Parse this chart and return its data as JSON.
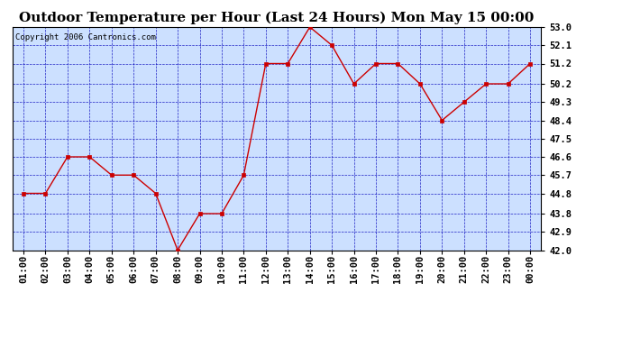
{
  "title": "Outdoor Temperature per Hour (Last 24 Hours) Mon May 15 00:00",
  "copyright": "Copyright 2006 Cantronics.com",
  "x_labels": [
    "01:00",
    "02:00",
    "03:00",
    "04:00",
    "05:00",
    "06:00",
    "07:00",
    "08:00",
    "09:00",
    "10:00",
    "11:00",
    "12:00",
    "13:00",
    "14:00",
    "15:00",
    "16:00",
    "17:00",
    "18:00",
    "19:00",
    "20:00",
    "21:00",
    "22:00",
    "23:00",
    "00:00"
  ],
  "y_values": [
    44.8,
    44.8,
    46.6,
    46.6,
    45.7,
    45.7,
    44.8,
    42.0,
    43.8,
    43.8,
    45.7,
    51.2,
    51.2,
    53.0,
    52.1,
    50.2,
    51.2,
    51.2,
    50.2,
    48.4,
    49.3,
    50.2,
    50.2,
    51.2
  ],
  "y_ticks": [
    42.0,
    42.9,
    43.8,
    44.8,
    45.7,
    46.6,
    47.5,
    48.4,
    49.3,
    50.2,
    51.2,
    52.1,
    53.0
  ],
  "ylim": [
    42.0,
    53.0
  ],
  "line_color": "#cc0000",
  "marker_color": "#cc0000",
  "bg_color": "#cce0ff",
  "outer_bg": "#ffffff",
  "grid_color": "#0000bb",
  "title_fontsize": 11,
  "copyright_fontsize": 6.5,
  "tick_fontsize": 7.5
}
